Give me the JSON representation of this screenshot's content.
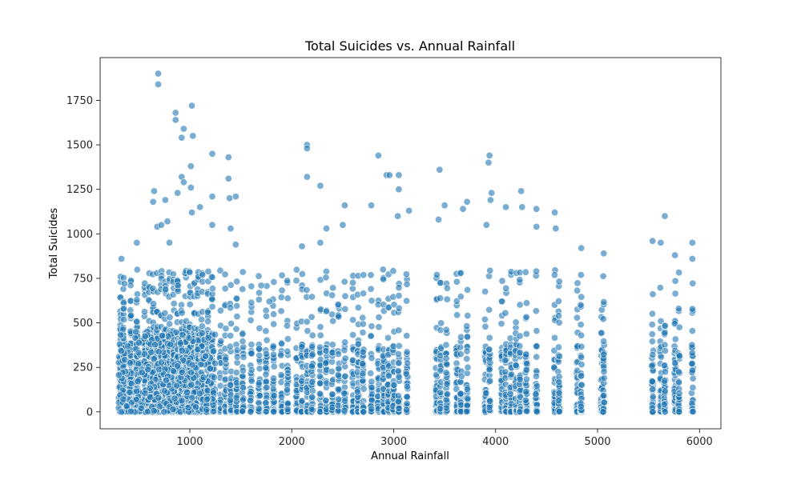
{
  "chart_data": {
    "type": "scatter",
    "title": "Total Suicides vs. Annual Rainfall",
    "xlabel": "Annual Rainfall",
    "ylabel": "Total Suicides",
    "xlim": [
      120,
      6210
    ],
    "ylim": [
      -95,
      1990
    ],
    "xticks": [
      1000,
      2000,
      3000,
      4000,
      5000,
      6000
    ],
    "xtick_labels": [
      "1000",
      "2000",
      "3000",
      "4000",
      "5000",
      "6000"
    ],
    "yticks": [
      0,
      250,
      500,
      750,
      1000,
      1250,
      1500,
      1750
    ],
    "ytick_labels": [
      "0",
      "250",
      "500",
      "750",
      "1000",
      "1250",
      "1500",
      "1750"
    ],
    "grid": false,
    "marker_color": "#1f77b4",
    "marker_edge_color": "#ffffff",
    "marker_alpha": 0.6,
    "rainfall_columns": [
      320,
      350,
      420,
      480,
      560,
      600,
      640,
      680,
      720,
      760,
      800,
      840,
      880,
      920,
      960,
      1000,
      1040,
      1080,
      1120,
      1180,
      1220,
      1300,
      1350,
      1400,
      1460,
      1520,
      1600,
      1680,
      1750,
      1820,
      1900,
      1960,
      2050,
      2100,
      2150,
      2200,
      2280,
      2340,
      2400,
      2460,
      2520,
      2600,
      2650,
      2700,
      2780,
      2850,
      2900,
      2950,
      3000,
      3050,
      3130,
      3420,
      3460,
      3520,
      3620,
      3660,
      3720,
      3900,
      3940,
      4060,
      4100,
      4150,
      4200,
      4240,
      4300,
      4400,
      4580,
      4620,
      4800,
      4840,
      5040,
      5060,
      5540,
      5620,
      5660,
      5760,
      5800,
      5930
    ],
    "highlight_points": [
      {
        "x": 330,
        "y": 860
      },
      {
        "x": 360,
        "y": 720
      },
      {
        "x": 350,
        "y": 580
      },
      {
        "x": 480,
        "y": 950
      },
      {
        "x": 480,
        "y": 630
      },
      {
        "x": 650,
        "y": 1240
      },
      {
        "x": 640,
        "y": 1180
      },
      {
        "x": 690,
        "y": 1900
      },
      {
        "x": 690,
        "y": 1840
      },
      {
        "x": 680,
        "y": 1040
      },
      {
        "x": 720,
        "y": 1050
      },
      {
        "x": 760,
        "y": 1190
      },
      {
        "x": 780,
        "y": 1070
      },
      {
        "x": 800,
        "y": 950
      },
      {
        "x": 860,
        "y": 1680
      },
      {
        "x": 860,
        "y": 1640
      },
      {
        "x": 880,
        "y": 1230
      },
      {
        "x": 920,
        "y": 1540
      },
      {
        "x": 920,
        "y": 1320
      },
      {
        "x": 940,
        "y": 1590
      },
      {
        "x": 940,
        "y": 1290
      },
      {
        "x": 1020,
        "y": 1720
      },
      {
        "x": 1030,
        "y": 1550
      },
      {
        "x": 1010,
        "y": 1380
      },
      {
        "x": 1010,
        "y": 1260
      },
      {
        "x": 1020,
        "y": 1120
      },
      {
        "x": 1100,
        "y": 1150
      },
      {
        "x": 1220,
        "y": 1450
      },
      {
        "x": 1220,
        "y": 1210
      },
      {
        "x": 1220,
        "y": 1050
      },
      {
        "x": 1380,
        "y": 1430
      },
      {
        "x": 1380,
        "y": 1310
      },
      {
        "x": 1390,
        "y": 1200
      },
      {
        "x": 1450,
        "y": 1210
      },
      {
        "x": 1400,
        "y": 1030
      },
      {
        "x": 1450,
        "y": 940
      },
      {
        "x": 1700,
        "y": 710
      },
      {
        "x": 1780,
        "y": 620
      },
      {
        "x": 2150,
        "y": 1500
      },
      {
        "x": 2150,
        "y": 1480
      },
      {
        "x": 2150,
        "y": 1320
      },
      {
        "x": 2100,
        "y": 930
      },
      {
        "x": 2280,
        "y": 1270
      },
      {
        "x": 2340,
        "y": 1030
      },
      {
        "x": 2280,
        "y": 950
      },
      {
        "x": 2520,
        "y": 1160
      },
      {
        "x": 2500,
        "y": 1050
      },
      {
        "x": 2780,
        "y": 1160
      },
      {
        "x": 2850,
        "y": 1440
      },
      {
        "x": 2930,
        "y": 1330
      },
      {
        "x": 2960,
        "y": 1330
      },
      {
        "x": 3050,
        "y": 1330
      },
      {
        "x": 3050,
        "y": 1250
      },
      {
        "x": 3150,
        "y": 1130
      },
      {
        "x": 3040,
        "y": 1100
      },
      {
        "x": 3450,
        "y": 1360
      },
      {
        "x": 3500,
        "y": 1160
      },
      {
        "x": 3440,
        "y": 1080
      },
      {
        "x": 3720,
        "y": 1180
      },
      {
        "x": 3680,
        "y": 1140
      },
      {
        "x": 3940,
        "y": 1440
      },
      {
        "x": 3930,
        "y": 1400
      },
      {
        "x": 3960,
        "y": 1230
      },
      {
        "x": 3950,
        "y": 1190
      },
      {
        "x": 3910,
        "y": 1050
      },
      {
        "x": 4100,
        "y": 1150
      },
      {
        "x": 4250,
        "y": 1240
      },
      {
        "x": 4260,
        "y": 1150
      },
      {
        "x": 4400,
        "y": 1140
      },
      {
        "x": 4400,
        "y": 1040
      },
      {
        "x": 4580,
        "y": 1120
      },
      {
        "x": 4590,
        "y": 1030
      },
      {
        "x": 4840,
        "y": 920
      },
      {
        "x": 5060,
        "y": 890
      },
      {
        "x": 5540,
        "y": 960
      },
      {
        "x": 5660,
        "y": 1100
      },
      {
        "x": 5620,
        "y": 950
      },
      {
        "x": 5760,
        "y": 880
      },
      {
        "x": 5930,
        "y": 950
      },
      {
        "x": 5930,
        "y": 860
      }
    ]
  }
}
